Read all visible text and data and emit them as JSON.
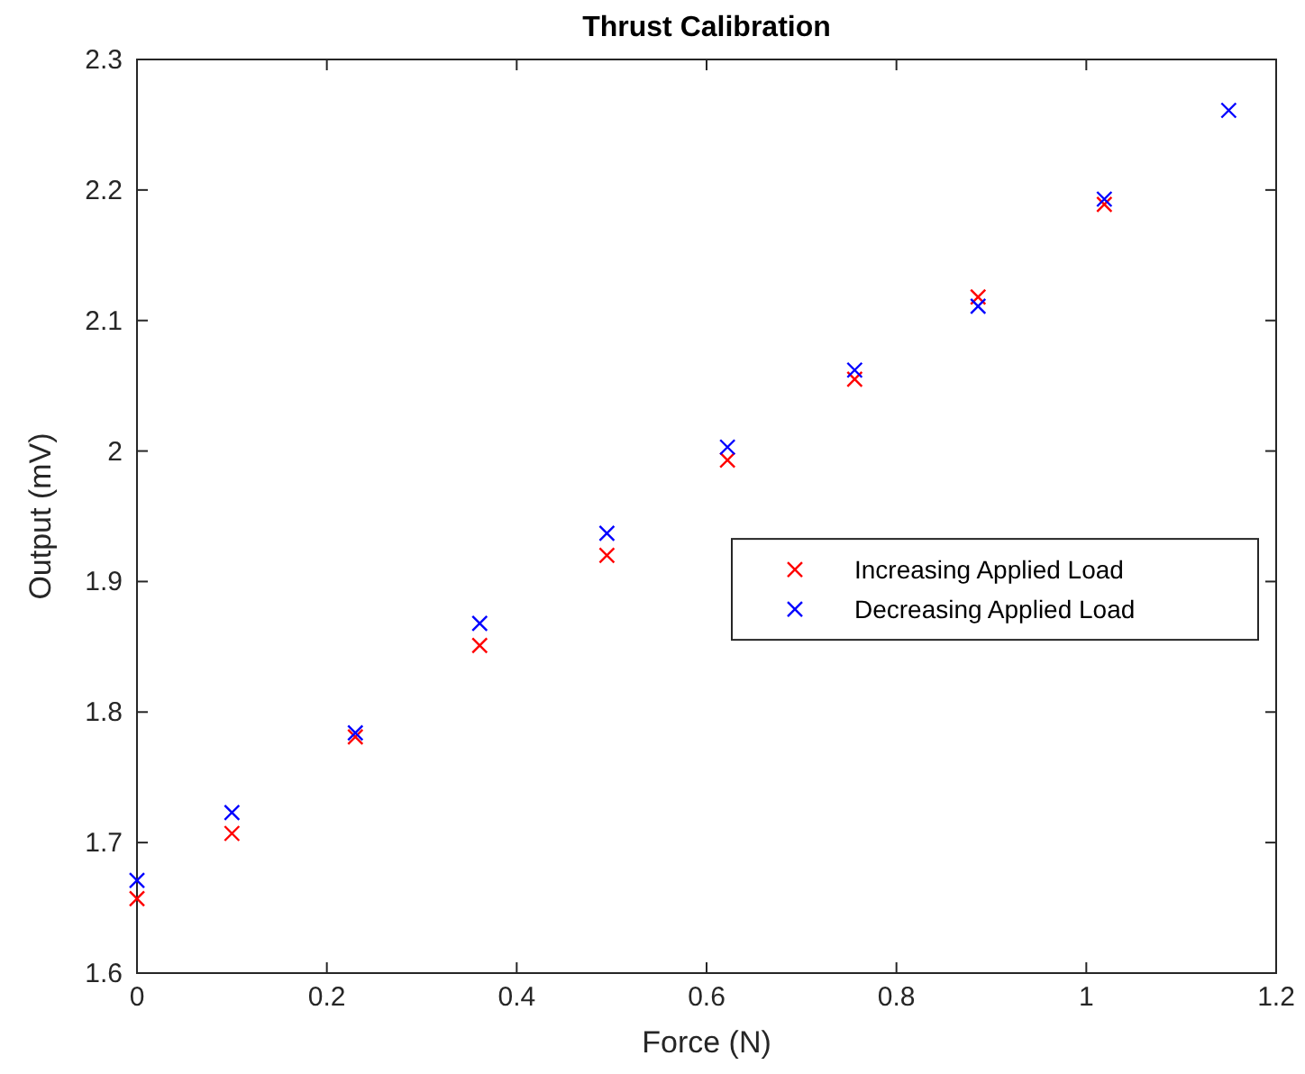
{
  "chart_data": {
    "type": "scatter",
    "title": "Thrust Calibration",
    "xlabel": "Force (N)",
    "ylabel": "Output (mV)",
    "xlim": [
      0,
      1.2
    ],
    "xticks": [
      0,
      0.2,
      0.4,
      0.6,
      0.8,
      1,
      1.2
    ],
    "ylim": [
      1.6,
      2.3
    ],
    "yticks": [
      1.6,
      1.7,
      1.8,
      1.9,
      2,
      2.1,
      2.2,
      2.3
    ],
    "grid": false,
    "legend": "right",
    "marker": "cross",
    "series": [
      {
        "name": "Increasing Applied Load",
        "color": "#ff0000",
        "x": [
          0,
          0.1,
          0.23,
          0.361,
          0.495,
          0.622,
          0.756,
          0.886,
          1.019
        ],
        "values": [
          1.657,
          1.707,
          1.781,
          1.851,
          1.92,
          1.993,
          2.055,
          2.118,
          2.189
        ]
      },
      {
        "name": "Decreasing Applied Load",
        "color": "#0000ff",
        "x": [
          0,
          0.1,
          0.23,
          0.361,
          0.495,
          0.622,
          0.756,
          0.886,
          1.019,
          1.15
        ],
        "values": [
          1.671,
          1.723,
          1.784,
          1.868,
          1.937,
          2.003,
          2.062,
          2.111,
          2.193,
          2.261
        ]
      }
    ]
  }
}
